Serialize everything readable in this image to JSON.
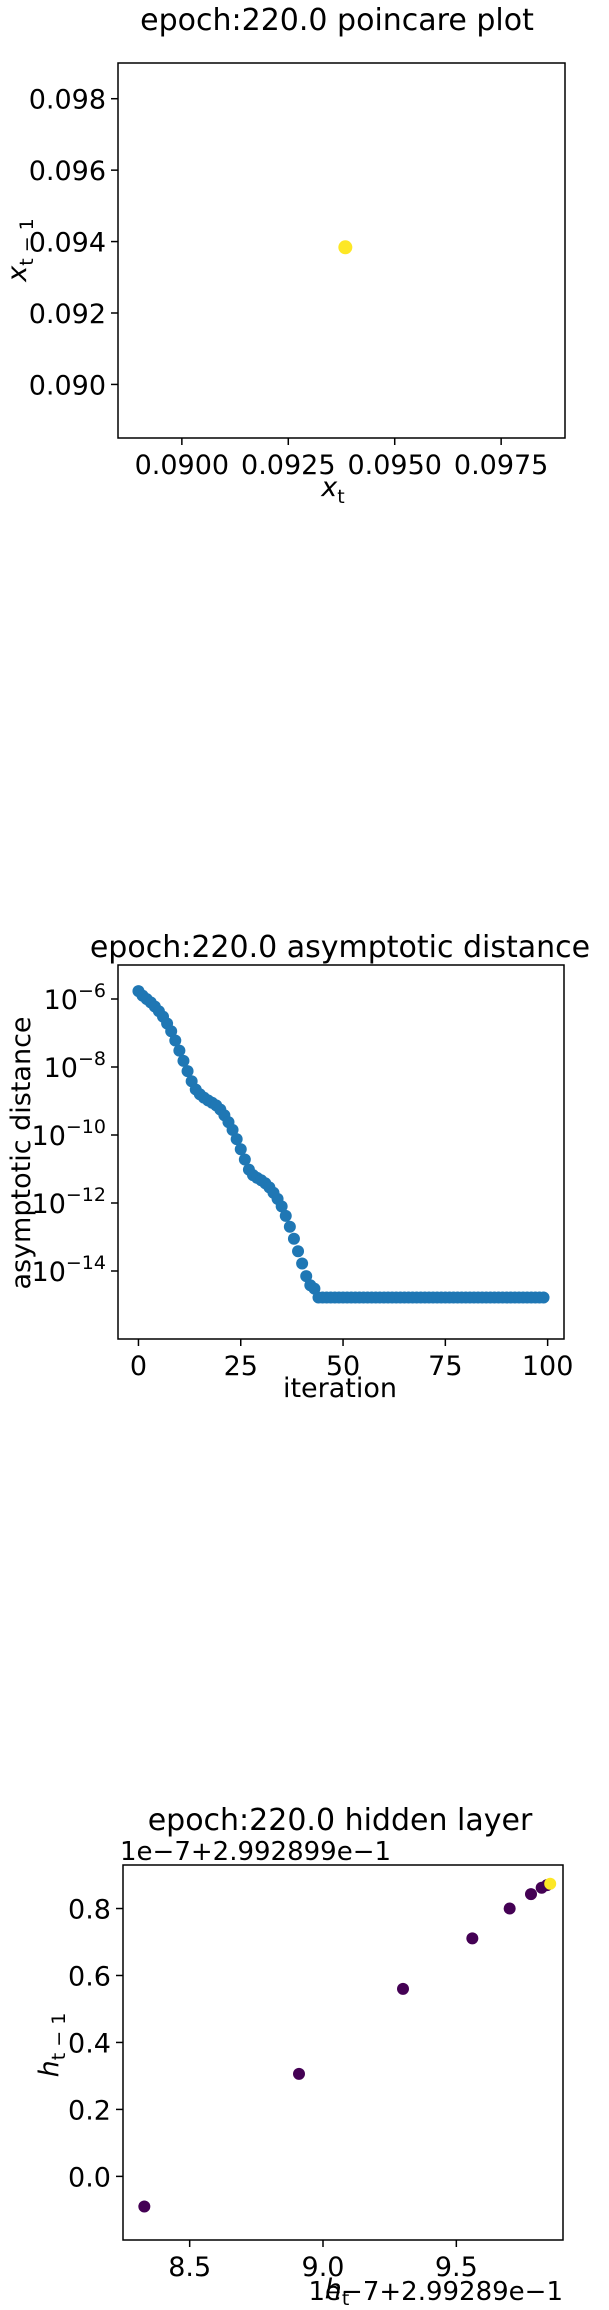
{
  "chart_data": [
    {
      "type": "scatter",
      "title": "epoch:220.0 poincare plot",
      "xlabel": "x_t",
      "ylabel": "x_{t-1}",
      "xlim": [
        0.0885,
        0.099
      ],
      "ylim": [
        0.0885,
        0.099
      ],
      "xticks": [
        "0.0900",
        "0.0925",
        "0.0950",
        "0.0975"
      ],
      "yticks": [
        "0.090",
        "0.092",
        "0.094",
        "0.096",
        "0.098"
      ],
      "points": [
        {
          "x": 0.09384,
          "y": 0.09384
        }
      ],
      "color": "#fde725"
    },
    {
      "type": "scatter",
      "title": "epoch:220.0 asymptotic distance",
      "xlabel": "iteration",
      "ylabel": "asymptotic distance",
      "yscale": "log",
      "xlim": [
        -5,
        104
      ],
      "ylim": [
        1e-16,
        1e-05
      ],
      "xticks": [
        "0",
        "25",
        "50",
        "75",
        "100"
      ],
      "yticks": [
        {
          "base": "10",
          "exp": "−6"
        },
        {
          "base": "10",
          "exp": "−8"
        },
        {
          "base": "10",
          "exp": "−10"
        },
        {
          "base": "10",
          "exp": "−12"
        },
        {
          "base": "10",
          "exp": "−14"
        }
      ],
      "color": "#1f77b4",
      "y_log10": [
        -5.77,
        -5.9,
        -6.0,
        -6.1,
        -6.22,
        -6.36,
        -6.52,
        -6.72,
        -6.95,
        -7.22,
        -7.52,
        -7.82,
        -8.12,
        -8.42,
        -8.66,
        -8.8,
        -8.9,
        -8.98,
        -9.05,
        -9.13,
        -9.25,
        -9.42,
        -9.62,
        -9.85,
        -10.12,
        -10.42,
        -10.72,
        -11.02,
        -11.18,
        -11.26,
        -11.33,
        -11.42,
        -11.54,
        -11.7,
        -11.88,
        -12.1,
        -12.38,
        -12.7,
        -13.05,
        -13.42,
        -13.78,
        -14.15,
        -14.42,
        -14.52,
        -14.78,
        -14.78,
        -14.78,
        -14.78,
        -14.78,
        -14.78,
        -14.78,
        -14.78,
        -14.78,
        -14.78,
        -14.78,
        -14.78,
        -14.78,
        -14.78,
        -14.78,
        -14.78,
        -14.78,
        -14.78,
        -14.78,
        -14.78,
        -14.78,
        -14.78,
        -14.78,
        -14.78,
        -14.78,
        -14.78,
        -14.78,
        -14.78,
        -14.78,
        -14.78,
        -14.78,
        -14.78,
        -14.78,
        -14.78,
        -14.78,
        -14.78,
        -14.78,
        -14.78,
        -14.78,
        -14.78,
        -14.78,
        -14.78,
        -14.78,
        -14.78,
        -14.78,
        -14.78,
        -14.78,
        -14.78,
        -14.78,
        -14.78,
        -14.78,
        -14.78,
        -14.78,
        -14.78,
        -14.78,
        -14.78
      ]
    },
    {
      "type": "scatter",
      "title": "epoch:220.0 hidden layer",
      "xlabel": "h_t",
      "ylabel": "h_{t-1}",
      "xlim": [
        8.25,
        9.9
      ],
      "ylim": [
        -0.19,
        0.93
      ],
      "xticks": [
        "8.5",
        "9.0",
        "9.5"
      ],
      "yticks": [
        "0.8",
        "0.6",
        "0.4",
        "0.2",
        "0.0"
      ],
      "x_offset_text": "1e−7+2.99289e−1",
      "y_offset_text": "1e−7+2.992899e−1",
      "points": [
        {
          "x": 8.33,
          "y": -0.09,
          "color": "#440154"
        },
        {
          "x": 8.91,
          "y": 0.306,
          "color": "#440154"
        },
        {
          "x": 9.3,
          "y": 0.56,
          "color": "#440154"
        },
        {
          "x": 9.56,
          "y": 0.711,
          "color": "#440154"
        },
        {
          "x": 9.7,
          "y": 0.8,
          "color": "#440154"
        },
        {
          "x": 9.78,
          "y": 0.843,
          "color": "#440154"
        },
        {
          "x": 9.82,
          "y": 0.862,
          "color": "#440154"
        },
        {
          "x": 9.84,
          "y": 0.87,
          "color": "#440154"
        },
        {
          "x": 9.852,
          "y": 0.874,
          "color": "#fde725"
        }
      ]
    }
  ]
}
